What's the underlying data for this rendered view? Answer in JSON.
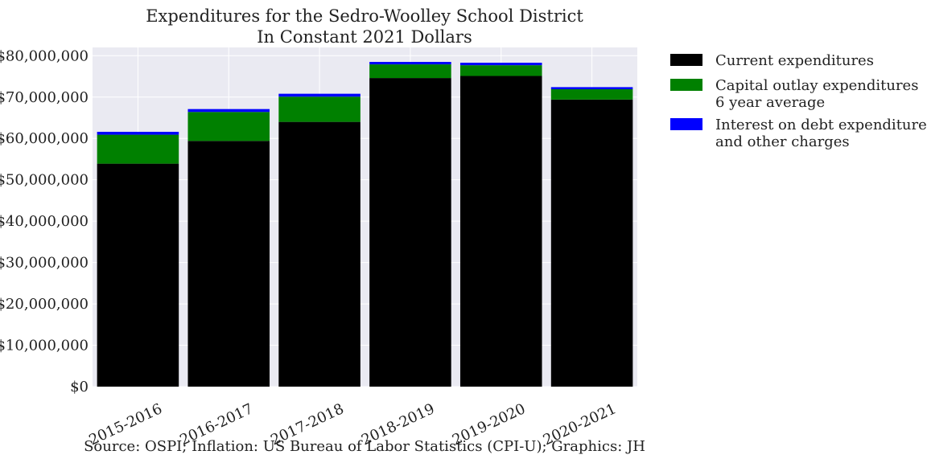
{
  "chart_data": {
    "type": "bar",
    "stacked": true,
    "title": "Expenditures for the Sedro-Woolley School District",
    "subtitle": "In Constant 2021 Dollars",
    "xlabel": "",
    "ylabel": "",
    "categories": [
      "2015-2016",
      "2016-2017",
      "2017-2018",
      "2018-2019",
      "2019-2020",
      "2020-2021"
    ],
    "series": [
      {
        "name": "Current expenditures",
        "color": "#000000",
        "values": [
          53900000,
          59400000,
          64000000,
          74600000,
          75100000,
          69400000
        ]
      },
      {
        "name": "Capital outlay expenditures\n6 year average",
        "color": "#008000",
        "values": [
          7000000,
          7000000,
          6100000,
          3300000,
          2600000,
          2500000
        ]
      },
      {
        "name": "Interest on debt expenditures\nand other charges",
        "color": "#0000ff",
        "values": [
          700000,
          700000,
          700000,
          600000,
          600000,
          500000
        ]
      }
    ],
    "ylim": [
      0,
      82000000
    ],
    "yticks": [
      0,
      10000000,
      20000000,
      30000000,
      40000000,
      50000000,
      60000000,
      70000000,
      80000000
    ],
    "ytick_labels": [
      "$0",
      "$10,000,000",
      "$20,000,000",
      "$30,000,000",
      "$40,000,000",
      "$50,000,000",
      "$60,000,000",
      "$70,000,000",
      "$80,000,000"
    ],
    "grid": true,
    "legend_position": "outside-right-top",
    "background_color": "#eaeaf2",
    "source_note": "Source: OSPI; Inflation: US Bureau of Labor Statistics (CPI-U); Graphics: JH"
  }
}
